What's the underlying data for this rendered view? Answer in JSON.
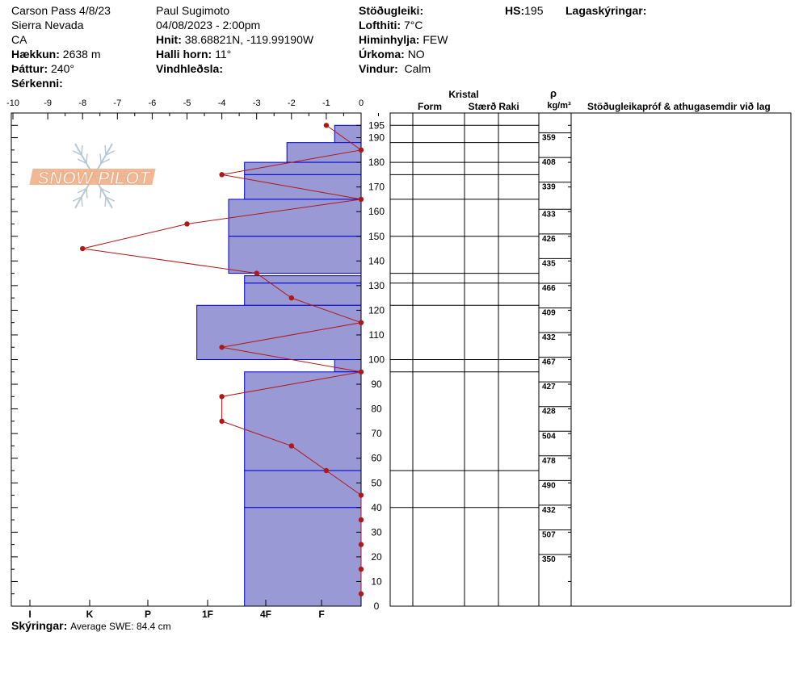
{
  "header": {
    "location": "Carson Pass 4/8/23",
    "range": "Sierra Nevada",
    "state": "CA",
    "elevation_label": "Hækkun:",
    "elevation": "2638 m",
    "aspect_label": "Þáttur:",
    "aspect": "240°",
    "special_label": "Sérkenni:",
    "observer": "Paul Sugimoto",
    "datetime": "04/08/2023 - 2:00pm",
    "coords_label": "Hnit:",
    "coords": "38.68821N, -119.99190W",
    "slope_label": "Halli horn:",
    "slope": "11°",
    "wind_loading_label": "Vindhleðsla:",
    "stability_label": "Stöðugleiki:",
    "air_temp_label": "Lofthiti:",
    "air_temp": "7°C",
    "sky_label": "Himinhylja:",
    "sky": "FEW",
    "precip_label": "Úrkoma:",
    "precip": "NO",
    "wind_label": "Vindur:",
    "wind": "Calm",
    "hs_label": "HS:",
    "hs": "195",
    "layer_notes_label": "Lagaskýringar:"
  },
  "footer": {
    "notes_label": "Skýringar:",
    "notes": "Average SWE: 84.4 cm"
  },
  "logo": {
    "text": "SNOW PILOT"
  },
  "columns": {
    "crystal": "Kristal",
    "form": "Form",
    "size": "Stærð",
    "moisture": "Raki",
    "rho": "ρ",
    "density_unit": "kg/m³",
    "tests": "Stöðugleikapróf & athugasemdir við lag"
  },
  "chart_data": {
    "type": "snow-profile",
    "temp_axis": {
      "ticks": [
        "-10",
        "-9",
        "-8",
        "-7",
        "-6",
        "-5",
        "-4",
        "-3",
        "-2",
        "-1",
        "0"
      ],
      "range": [
        -10,
        0
      ]
    },
    "hardness_axis": {
      "ticks": [
        "I",
        "K",
        "P",
        "1F",
        "4F",
        "F"
      ]
    },
    "height_axis": {
      "ticks": [
        0,
        10,
        20,
        30,
        40,
        50,
        60,
        70,
        80,
        90,
        100,
        110,
        120,
        130,
        140,
        150,
        160,
        170,
        180,
        190,
        195
      ],
      "range": [
        0,
        195
      ]
    },
    "hardness_layers": [
      {
        "bottom": 185,
        "top": 195,
        "hardness": 1
      },
      {
        "bottom": 180,
        "top": 188,
        "hardness": 2.8
      },
      {
        "bottom": 175,
        "top": 180,
        "hardness": 4.4
      },
      {
        "bottom": 165,
        "top": 175,
        "hardness": 4.4
      },
      {
        "bottom": 150,
        "top": 165,
        "hardness": 5
      },
      {
        "bottom": 135,
        "top": 150,
        "hardness": 5
      },
      {
        "bottom": 131,
        "top": 134,
        "hardness": 4.4
      },
      {
        "bottom": 122,
        "top": 131,
        "hardness": 4.4
      },
      {
        "bottom": 100,
        "top": 122,
        "hardness": 6.2
      },
      {
        "bottom": 95,
        "top": 100,
        "hardness": 1
      },
      {
        "bottom": 55,
        "top": 95,
        "hardness": 4.4
      },
      {
        "bottom": 40,
        "top": 55,
        "hardness": 4.4
      },
      {
        "bottom": 0,
        "top": 40,
        "hardness": 4.4
      }
    ],
    "temperature_profile": [
      {
        "height": 195,
        "temp": -1
      },
      {
        "height": 185,
        "temp": 0
      },
      {
        "height": 175,
        "temp": -4
      },
      {
        "height": 165,
        "temp": 0
      },
      {
        "height": 155,
        "temp": -5
      },
      {
        "height": 145,
        "temp": -8
      },
      {
        "height": 135,
        "temp": -3
      },
      {
        "height": 125,
        "temp": -2
      },
      {
        "height": 115,
        "temp": 0
      },
      {
        "height": 105,
        "temp": -4
      },
      {
        "height": 95,
        "temp": 0
      },
      {
        "height": 85,
        "temp": -4
      },
      {
        "height": 75,
        "temp": -4
      },
      {
        "height": 65,
        "temp": -2
      },
      {
        "height": 55,
        "temp": -1
      },
      {
        "height": 45,
        "temp": 0
      },
      {
        "height": 35,
        "temp": 0
      },
      {
        "height": 25,
        "temp": 0
      },
      {
        "height": 15,
        "temp": 0
      },
      {
        "height": 5,
        "temp": 0
      }
    ],
    "layer_boundaries": [
      195,
      188,
      180,
      175,
      165,
      150,
      135,
      131,
      122,
      100,
      95,
      55,
      40
    ],
    "densities": [
      {
        "value": "359",
        "height": 189
      },
      {
        "value": "408",
        "height": 179
      },
      {
        "value": "339",
        "height": 169
      },
      {
        "value": "433",
        "height": 158
      },
      {
        "value": "426",
        "height": 148
      },
      {
        "value": "435",
        "height": 138
      },
      {
        "value": "466",
        "height": 128
      },
      {
        "value": "409",
        "height": 118
      },
      {
        "value": "432",
        "height": 108
      },
      {
        "value": "467",
        "height": 98
      },
      {
        "value": "427",
        "height": 88
      },
      {
        "value": "428",
        "height": 78
      },
      {
        "value": "504",
        "height": 68
      },
      {
        "value": "478",
        "height": 58
      },
      {
        "value": "490",
        "height": 48
      },
      {
        "value": "432",
        "height": 38
      },
      {
        "value": "507",
        "height": 28
      },
      {
        "value": "350",
        "height": 18
      }
    ]
  },
  "colors": {
    "layer_fill": "#9999d6",
    "layer_line": "#0000cc",
    "temp_line": "#b01818",
    "logo_orange": "#f0b08a",
    "logo_blue": "#b7c9d6"
  }
}
